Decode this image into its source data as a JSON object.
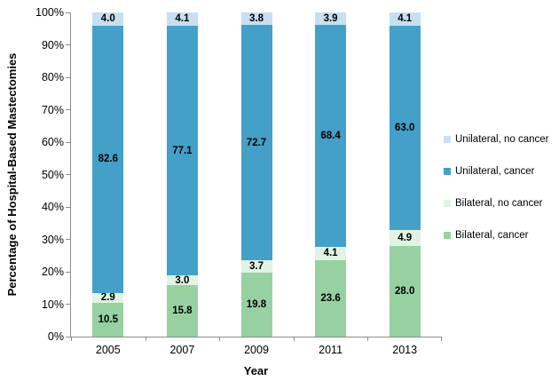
{
  "chart_data": {
    "type": "bar",
    "stacked": true,
    "title": "",
    "xlabel": "Year",
    "ylabel": "Percentage of Hospital-Based Mastectomies",
    "categories": [
      "2005",
      "2007",
      "2009",
      "2011",
      "2013"
    ],
    "series": [
      {
        "name": "Bilateral, cancer",
        "color": "#97D1A1",
        "values": [
          10.5,
          15.8,
          19.8,
          23.6,
          28.0
        ],
        "labels": [
          "10.5",
          "15.8",
          "19.8",
          "23.6",
          "28.0"
        ]
      },
      {
        "name": "Bilateral, no cancer",
        "color": "#E1F3E2",
        "values": [
          2.9,
          3.0,
          3.7,
          4.1,
          4.9
        ],
        "labels": [
          "2.9",
          "3.0",
          "3.7",
          "4.1",
          "4.9"
        ]
      },
      {
        "name": "Unilateral, cancer",
        "color": "#44A0C8",
        "values": [
          82.6,
          77.1,
          72.7,
          68.4,
          63.0
        ],
        "labels": [
          "82.6",
          "77.1",
          "72.7",
          "68.4",
          "63.0"
        ]
      },
      {
        "name": "Unilateral, no cancer",
        "color": "#C6E0F1",
        "values": [
          4.0,
          4.1,
          3.8,
          3.9,
          4.1
        ],
        "labels": [
          "4.0",
          "4.1",
          "3.8",
          "3.9",
          "4.1"
        ]
      }
    ],
    "legend": [
      "Unilateral, no cancer",
      "Unilateral, cancer",
      "Bilateral, no cancer",
      "Bilateral, cancer"
    ],
    "legend_position": "right",
    "ylim": [
      0,
      100
    ],
    "ytick_step": 10,
    "yticks": [
      "0%",
      "10%",
      "20%",
      "30%",
      "40%",
      "50%",
      "60%",
      "70%",
      "80%",
      "90%",
      "100%"
    ],
    "grid": false,
    "axis_color": "#8C8C8C",
    "value_label_color": "#000000"
  }
}
